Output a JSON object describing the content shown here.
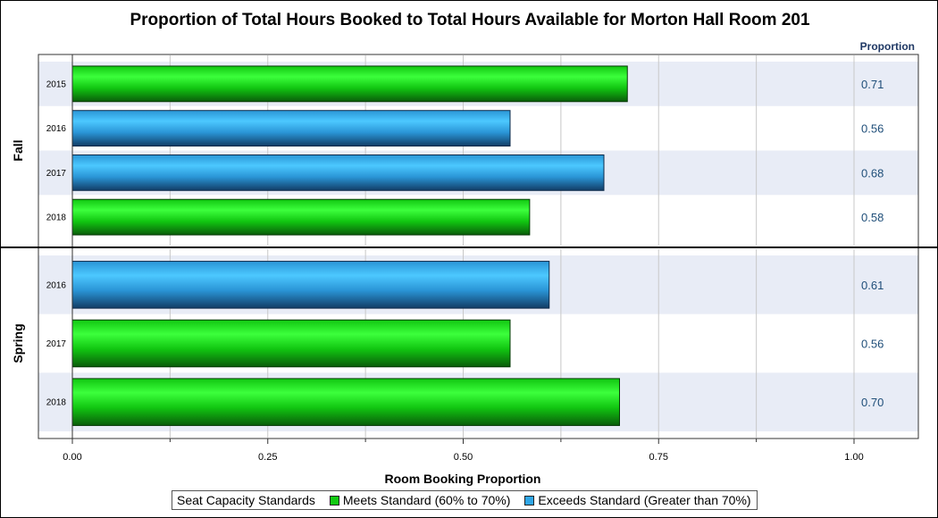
{
  "chart_data": {
    "type": "bar",
    "orientation": "horizontal",
    "title": "Proportion of Total Hours Booked to Total Hours Available for Morton Hall Room 201",
    "xlabel": "Room Booking Proportion",
    "value_column_header": "Proportion",
    "xlim": [
      0,
      1.0
    ],
    "x_ticks": [
      "0.00",
      "0.25",
      "0.50",
      "0.75",
      "1.00"
    ],
    "grid": true,
    "legend_position": "bottom",
    "groups": [
      {
        "name": "Fall",
        "bars": [
          {
            "year": "2015",
            "value": 0.71,
            "label": "0.71",
            "standard": "meets"
          },
          {
            "year": "2016",
            "value": 0.56,
            "label": "0.56",
            "standard": "exceeds"
          },
          {
            "year": "2017",
            "value": 0.68,
            "label": "0.68",
            "standard": "exceeds"
          },
          {
            "year": "2018",
            "value": 0.585,
            "label": "0.58",
            "standard": "meets"
          }
        ]
      },
      {
        "name": "Spring",
        "bars": [
          {
            "year": "2016",
            "value": 0.61,
            "label": "0.61",
            "standard": "exceeds"
          },
          {
            "year": "2017",
            "value": 0.56,
            "label": "0.56",
            "standard": "meets"
          },
          {
            "year": "2018",
            "value": 0.7,
            "label": "0.70",
            "standard": "meets"
          }
        ]
      }
    ],
    "legend": {
      "title": "Seat Capacity Standards",
      "items": [
        {
          "key": "meets",
          "label": "Meets Standard (60% to 70%)",
          "color": "#12c912"
        },
        {
          "key": "exceeds",
          "label": "Exceeds Standard (Greater than 70%)",
          "color": "#2fa6e6"
        }
      ]
    },
    "colors": {
      "meets_light": "#3cff3c",
      "meets_mid": "#11c611",
      "meets_dark": "#0a5c0a",
      "exceeds_light": "#4cc8ff",
      "exceeds_mid": "#2a95d6",
      "exceeds_dark": "#123d66",
      "row_band": "#e8ecf6",
      "value_text": "#1f4e79",
      "header_text": "#1f3864"
    }
  }
}
